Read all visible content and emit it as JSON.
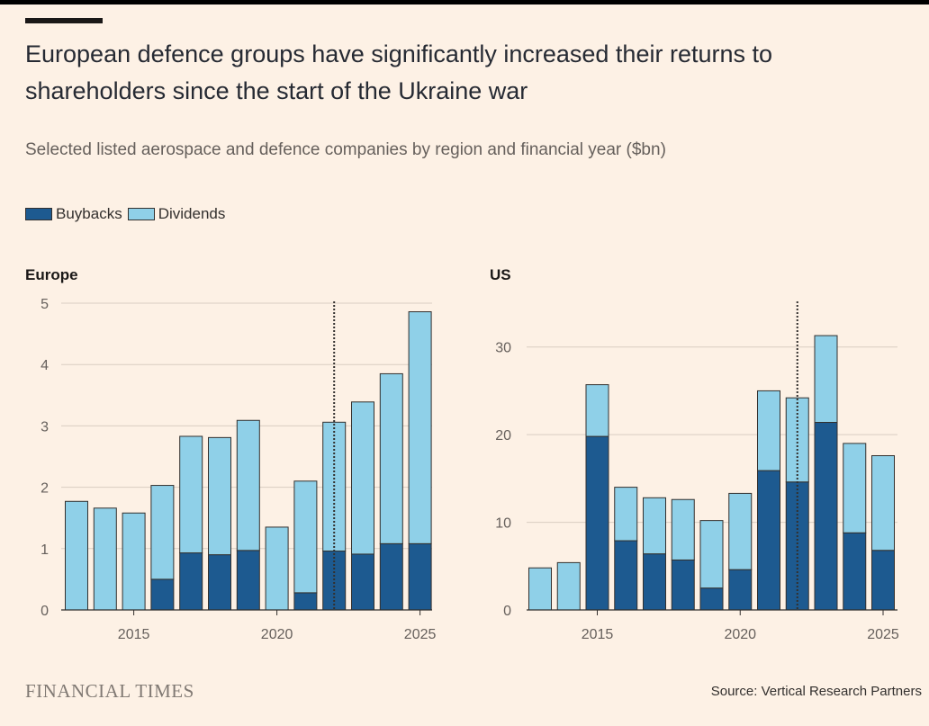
{
  "header": {
    "title": "European defence groups have significantly increased their returns to shareholders since the start of the Ukraine war",
    "subtitle": "Selected listed aerospace and defence companies by region and financial year ($bn)"
  },
  "legend": {
    "buybacks_label": "Buybacks",
    "dividends_label": "Dividends"
  },
  "colors": {
    "buybacks": "#1d5a90",
    "dividends": "#8fd0e8",
    "outline": "#33302e",
    "grid": "#d9cdc2",
    "marker": "#33302e"
  },
  "footer": {
    "brand": "FINANCIAL TIMES",
    "source": "Source: Vertical Research Partners"
  },
  "chart_data": [
    {
      "type": "bar",
      "stacked": true,
      "title": "Europe",
      "x": [
        2013,
        2014,
        2015,
        2016,
        2017,
        2018,
        2019,
        2020,
        2021,
        2022,
        2023,
        2024,
        2025
      ],
      "series": [
        {
          "name": "Buybacks",
          "values": [
            0,
            0,
            0,
            0.5,
            0.93,
            0.9,
            0.97,
            0,
            0.28,
            0.96,
            0.91,
            1.08,
            1.08
          ]
        },
        {
          "name": "Dividends",
          "values": [
            1.77,
            1.66,
            1.58,
            1.53,
            1.9,
            1.91,
            2.12,
            1.35,
            1.82,
            2.1,
            2.48,
            2.77,
            3.78
          ]
        }
      ],
      "ylim": [
        0,
        5
      ],
      "yticks": [
        0,
        1,
        2,
        3,
        4,
        5
      ],
      "xticks": [
        2015,
        2020,
        2025
      ],
      "marker_x": 2022,
      "legend_position": "top-left"
    },
    {
      "type": "bar",
      "stacked": true,
      "title": "US",
      "x": [
        2013,
        2014,
        2015,
        2016,
        2017,
        2018,
        2019,
        2020,
        2021,
        2022,
        2023,
        2024,
        2025
      ],
      "series": [
        {
          "name": "Buybacks",
          "values": [
            0,
            0,
            19.8,
            7.9,
            6.4,
            5.7,
            2.5,
            4.6,
            15.9,
            14.6,
            21.4,
            8.8,
            6.8
          ]
        },
        {
          "name": "Dividends",
          "values": [
            4.8,
            5.4,
            5.9,
            6.1,
            6.4,
            6.9,
            7.7,
            8.7,
            9.1,
            9.6,
            9.9,
            10.2,
            10.8
          ]
        }
      ],
      "ylim": [
        0,
        35
      ],
      "yticks": [
        0,
        10,
        20,
        30
      ],
      "xticks": [
        2015,
        2020,
        2025
      ],
      "marker_x": 2022,
      "legend_position": "top-left"
    }
  ]
}
